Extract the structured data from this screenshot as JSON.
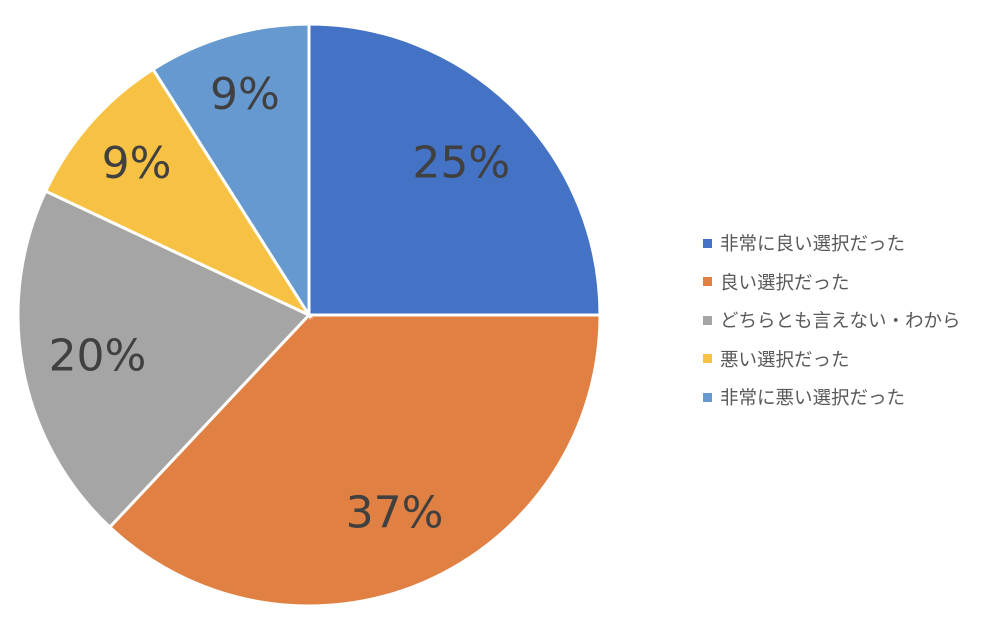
{
  "chart_data": {
    "type": "pie",
    "start_angle_deg": 0,
    "direction": "clockwise",
    "legend_position": "right",
    "slices": [
      {
        "label": "非常に良い選択だった",
        "value": 25,
        "data_label": "25%",
        "color": "#4472C4"
      },
      {
        "label": "良い選択だった",
        "value": 37,
        "data_label": "37%",
        "color": "#E08043"
      },
      {
        "label": "どちらとも言えない・わから",
        "value": 20,
        "data_label": "20%",
        "color": "#A5A5A5"
      },
      {
        "label": "悪い選択だった",
        "value": 9,
        "data_label": "9%",
        "color": "#F7C143"
      },
      {
        "label": "非常に悪い選択だった",
        "value": 9,
        "data_label": "9%",
        "color": "#6699D0"
      }
    ]
  }
}
